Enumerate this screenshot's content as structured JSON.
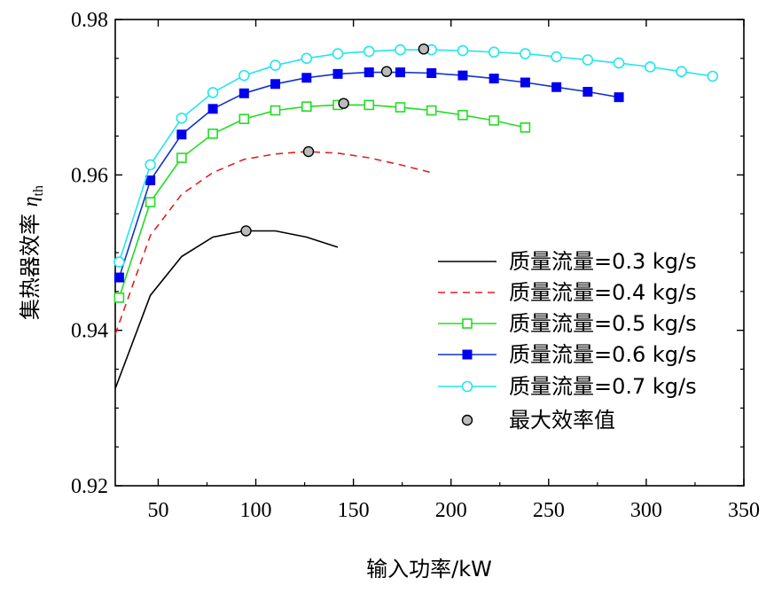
{
  "chart_data": {
    "type": "line",
    "xlabel": "输入功率/kW",
    "ylabel_main": "集热器效率 ",
    "ylabel_symbol": "η",
    "ylabel_sub": "th",
    "xlim": [
      28,
      350
    ],
    "ylim": [
      0.92,
      0.98
    ],
    "xticks": [
      50,
      100,
      150,
      200,
      250,
      300,
      350
    ],
    "yticks": [
      0.92,
      0.94,
      0.96,
      0.98
    ],
    "ytick_labels": [
      "0.92",
      "0.94",
      "0.96",
      "0.98"
    ],
    "grid": false,
    "legend_position": "lower-right",
    "series": [
      {
        "name": "质量流量=0.3 kg/s",
        "color": "#000000",
        "line_style": "solid",
        "marker": "none",
        "x": [
          28,
          46,
          62,
          78,
          94,
          110,
          126,
          142
        ],
        "y": [
          0.9325,
          0.9445,
          0.9495,
          0.952,
          0.9528,
          0.9528,
          0.952,
          0.9507
        ]
      },
      {
        "name": "质量流量=0.4 kg/s",
        "color": "#e02020",
        "line_style": "dashed",
        "marker": "none",
        "x": [
          28,
          46,
          62,
          78,
          94,
          110,
          126,
          142,
          158,
          174,
          190
        ],
        "y": [
          0.9395,
          0.9522,
          0.9575,
          0.9603,
          0.962,
          0.9627,
          0.963,
          0.9628,
          0.9622,
          0.9613,
          0.9603
        ]
      },
      {
        "name": "质量流量=0.5 kg/s",
        "color": "#22dd22",
        "line_style": "solid",
        "marker": "open-square",
        "x": [
          30,
          46,
          62,
          78,
          94,
          110,
          126,
          142,
          158,
          174,
          190,
          206,
          222,
          238
        ],
        "y": [
          0.9442,
          0.9565,
          0.9622,
          0.9653,
          0.9672,
          0.9683,
          0.9688,
          0.969,
          0.969,
          0.9687,
          0.9683,
          0.9677,
          0.967,
          0.9661
        ]
      },
      {
        "name": "质量流量=0.6 kg/s",
        "color": "#1133cc",
        "marker_color": "#0000ee",
        "line_style": "solid",
        "marker": "filled-square",
        "x": [
          30,
          46,
          62,
          78,
          94,
          110,
          126,
          142,
          158,
          174,
          190,
          206,
          222,
          238,
          254,
          270,
          286
        ],
        "y": [
          0.9468,
          0.9593,
          0.9652,
          0.9685,
          0.9705,
          0.9717,
          0.9725,
          0.973,
          0.9732,
          0.9732,
          0.9731,
          0.9728,
          0.9724,
          0.9719,
          0.9713,
          0.9707,
          0.97
        ]
      },
      {
        "name": "质量流量=0.7 kg/s",
        "color": "#22e6ee",
        "line_style": "solid",
        "marker": "open-circle",
        "x": [
          30,
          46,
          62,
          78,
          94,
          110,
          126,
          142,
          158,
          174,
          190,
          206,
          222,
          238,
          254,
          270,
          286,
          302,
          318,
          334
        ],
        "y": [
          0.9488,
          0.9613,
          0.9673,
          0.9706,
          0.9728,
          0.9741,
          0.975,
          0.9756,
          0.9759,
          0.9761,
          0.9761,
          0.976,
          0.9758,
          0.9756,
          0.9752,
          0.9748,
          0.9744,
          0.9739,
          0.9733,
          0.9727
        ]
      }
    ],
    "max_points": {
      "name": "最大效率值",
      "color": "#bbbbbb",
      "x": [
        95,
        127,
        145,
        167,
        186
      ],
      "y": [
        0.9528,
        0.963,
        0.9692,
        0.9733,
        0.9762
      ]
    }
  }
}
